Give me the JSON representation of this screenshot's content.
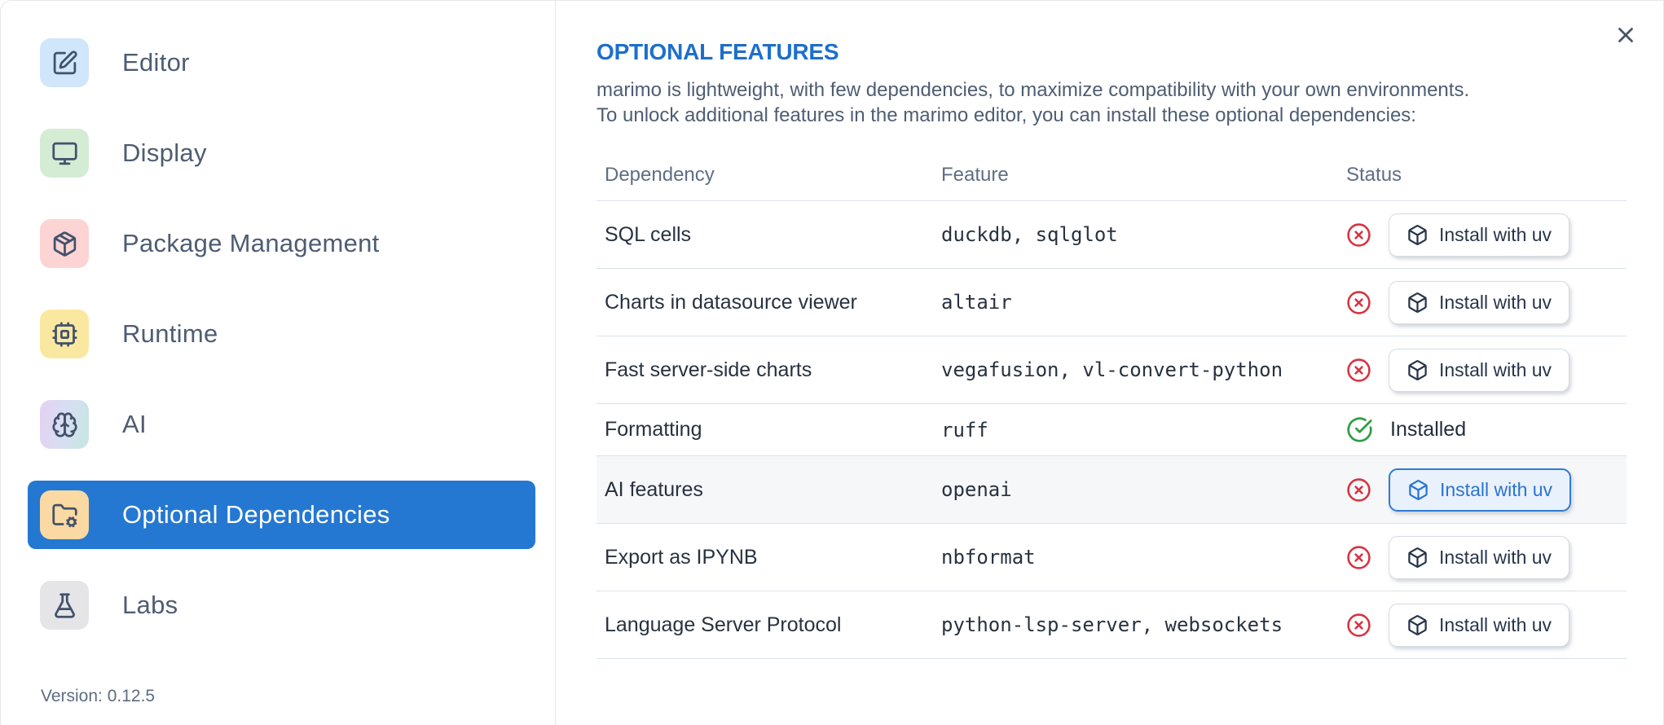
{
  "sidebar": {
    "items": [
      {
        "label": "Editor",
        "icon": "square-pen-icon",
        "icon_bg": "#cfe6fb",
        "selected": false
      },
      {
        "label": "Display",
        "icon": "monitor-icon",
        "icon_bg": "#d5ecd4",
        "selected": false
      },
      {
        "label": "Package Management",
        "icon": "package-icon",
        "icon_bg": "#fcd4d4",
        "selected": false
      },
      {
        "label": "Runtime",
        "icon": "cpu-icon",
        "icon_bg": "#fbe8a0",
        "selected": false
      },
      {
        "label": "AI",
        "icon": "brain-icon",
        "icon_bg": "linear-gradient(100deg,#e4d1f3 0%,#d6dff2 55%,#c5e7e1 100%)",
        "selected": false
      },
      {
        "label": "Optional Dependencies",
        "icon": "folder-cog-icon",
        "icon_bg": "#fbd9a2",
        "selected": true
      },
      {
        "label": "Labs",
        "icon": "flask-icon",
        "icon_bg": "#e5e5e8",
        "selected": false
      }
    ],
    "version": "Version: 0.12.5"
  },
  "panel": {
    "title": "OPTIONAL FEATURES",
    "description_lines": [
      "marimo is lightweight, with few dependencies, to maximize compatibility with your own environments.",
      "To unlock additional features in the marimo editor, you can install these optional dependencies:"
    ],
    "close_icon": "close-icon",
    "table": {
      "headers": [
        "Dependency",
        "Feature",
        "Status"
      ],
      "rows": [
        {
          "dependency": "SQL cells",
          "feature": "duckdb, sqlglot",
          "installed": false,
          "action": "Install with uv",
          "highlighted": false
        },
        {
          "dependency": "Charts in datasource viewer",
          "feature": "altair",
          "installed": false,
          "action": "Install with uv",
          "highlighted": false
        },
        {
          "dependency": "Fast server-side charts",
          "feature": "vegafusion, vl-convert-python",
          "installed": false,
          "action": "Install with uv",
          "highlighted": false
        },
        {
          "dependency": "Formatting",
          "feature": "ruff",
          "installed": true,
          "status_text": "Installed",
          "highlighted": false
        },
        {
          "dependency": "AI features",
          "feature": "openai",
          "installed": false,
          "action": "Install with uv",
          "highlighted": true
        },
        {
          "dependency": "Export as IPYNB",
          "feature": "nbformat",
          "installed": false,
          "action": "Install with uv",
          "highlighted": false
        },
        {
          "dependency": "Language Server Protocol",
          "feature": "python-lsp-server, websockets",
          "installed": false,
          "action": "Install with uv",
          "highlighted": false
        }
      ]
    }
  },
  "colors": {
    "selected_item_bg": "#2478d1",
    "title_blue": "#1d6fcb",
    "error_red": "#d63441",
    "success_green": "#2f9e44",
    "focused_button_border": "#2e7cd6",
    "focused_button_bg": "#e9f1fc",
    "row_highlight_bg": "#f6f7f9",
    "divider": "#dbe1ea"
  }
}
